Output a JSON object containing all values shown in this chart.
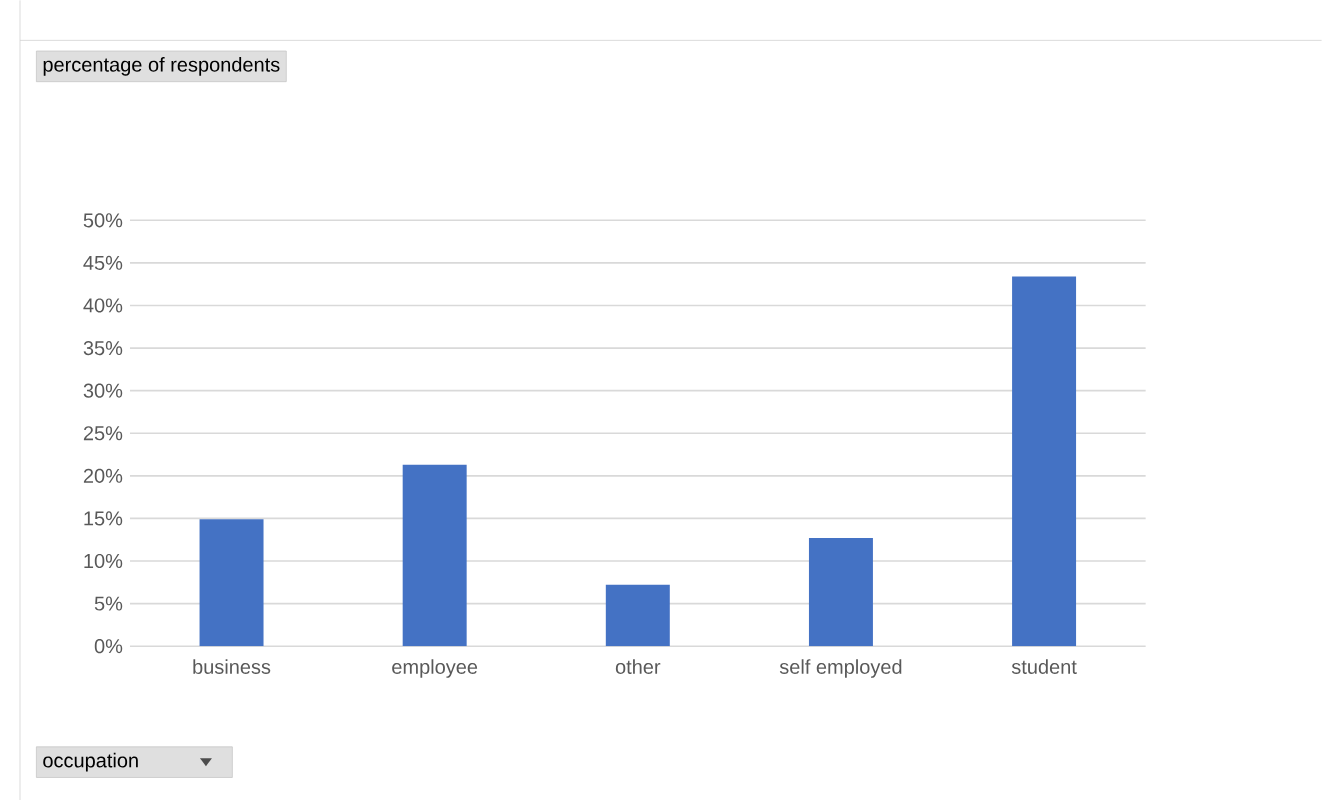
{
  "chart_data": {
    "type": "bar",
    "annotations": [
      "percentage of respondents",
      "occupation"
    ],
    "categories": [
      "business",
      "employee",
      "other",
      "self employed",
      "student"
    ],
    "values": [
      14.9,
      21.3,
      7.2,
      12.7,
      43.4
    ],
    "color": "#4472c4",
    "ylim": [
      0,
      50
    ],
    "yticks": [
      {
        "value": 0,
        "label": "0%"
      },
      {
        "value": 5,
        "label": "5%"
      },
      {
        "value": 10,
        "label": "10%"
      },
      {
        "value": 15,
        "label": "15%"
      },
      {
        "value": 20,
        "label": "20%"
      },
      {
        "value": 25,
        "label": "25%"
      },
      {
        "value": 30,
        "label": "30%"
      },
      {
        "value": 35,
        "label": "35%"
      },
      {
        "value": 40,
        "label": "40%"
      },
      {
        "value": 45,
        "label": "45%"
      },
      {
        "value": 50,
        "label": "50%"
      }
    ],
    "grid": "y"
  }
}
